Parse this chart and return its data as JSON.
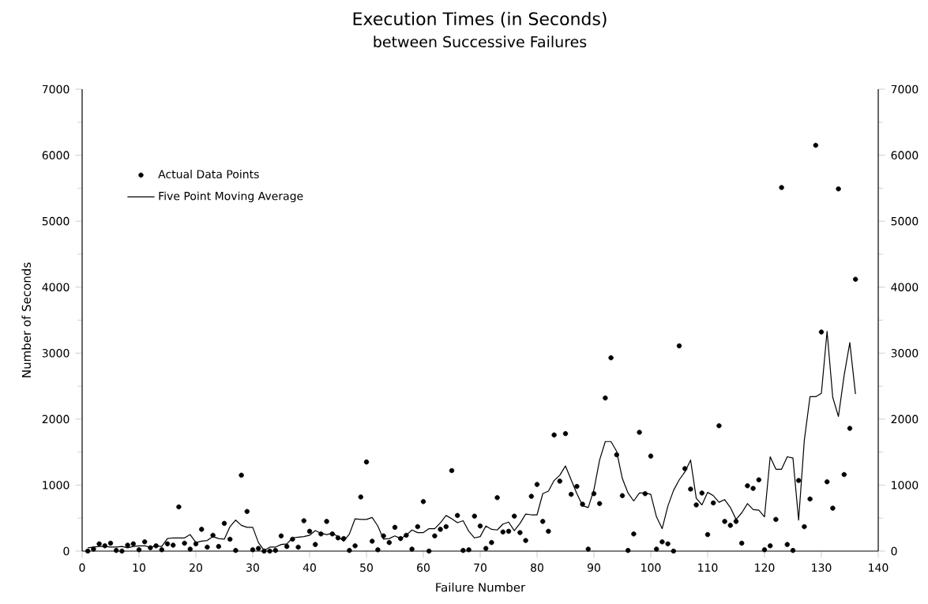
{
  "chart_data": {
    "type": "scatter",
    "title": "Execution Times (in Seconds)",
    "subtitle": "between Successive Failures",
    "xlabel": "Failure Number",
    "ylabel": "Number of Seconds",
    "x": [
      1,
      2,
      3,
      4,
      5,
      6,
      7,
      8,
      9,
      10,
      11,
      12,
      13,
      14,
      15,
      16,
      17,
      18,
      19,
      20,
      21,
      22,
      23,
      24,
      25,
      26,
      27,
      28,
      29,
      30,
      31,
      32,
      33,
      34,
      35,
      36,
      37,
      38,
      39,
      40,
      41,
      42,
      43,
      44,
      45,
      46,
      47,
      48,
      49,
      50,
      51,
      52,
      53,
      54,
      55,
      56,
      57,
      58,
      59,
      60,
      61,
      62,
      63,
      64,
      65,
      66,
      67,
      68,
      69,
      70,
      71,
      72,
      73,
      74,
      75,
      76,
      77,
      78,
      79,
      80,
      81,
      82,
      83,
      84,
      85,
      86,
      87,
      88,
      89,
      90,
      91,
      92,
      93,
      94,
      95,
      96,
      97,
      98,
      99,
      100,
      101,
      102,
      103,
      104,
      105,
      106,
      107,
      108,
      109,
      110,
      111,
      112,
      113,
      114,
      115,
      116,
      117,
      118,
      119,
      120,
      121,
      122,
      123,
      124,
      125,
      126,
      127,
      128,
      129,
      130,
      131,
      132,
      133,
      134,
      135,
      136
    ],
    "series": [
      {
        "name": "Actual Data Points",
        "marker": "circle",
        "color": "#000000",
        "values": [
          0,
          30,
          110,
          80,
          120,
          10,
          0,
          90,
          110,
          20,
          140,
          50,
          80,
          20,
          110,
          90,
          670,
          120,
          30,
          110,
          330,
          60,
          240,
          70,
          420,
          180,
          10,
          1150,
          600,
          20,
          40,
          0,
          0,
          10,
          230,
          70,
          180,
          60,
          460,
          300,
          100,
          260,
          450,
          260,
          200,
          190,
          10,
          80,
          820,
          1350,
          150,
          20,
          230,
          130,
          360,
          190,
          240,
          30,
          370,
          750,
          0,
          230,
          330,
          370,
          1220,
          540,
          10,
          20,
          530,
          380,
          40,
          130,
          810,
          290,
          300,
          530,
          280,
          160,
          830,
          1010,
          450,
          300,
          1760,
          1060,
          1780,
          860,
          980,
          710,
          30,
          870,
          720,
          2320,
          2930,
          1460,
          840,
          10,
          260,
          1800,
          870,
          1440,
          30,
          140,
          110,
          0,
          3110,
          1250,
          940,
          700,
          880,
          250,
          730,
          1900,
          450,
          390,
          450,
          120,
          990,
          950,
          1080,
          20,
          80,
          480,
          5510,
          100,
          10,
          1070,
          370,
          790,
          6150,
          3320,
          1050,
          650,
          5490,
          1160,
          1860,
          4120
        ]
      },
      {
        "name": "Five Point Moving Average",
        "type": "line",
        "marker": "none",
        "line_style": "solid",
        "color": "#000000",
        "values": [
          50,
          60,
          70,
          70,
          60,
          60,
          70,
          50,
          70,
          80,
          80,
          60,
          80,
          70,
          190,
          200,
          200,
          200,
          250,
          130,
          150,
          160,
          220,
          190,
          180,
          370,
          470,
          390,
          360,
          360,
          130,
          10,
          60,
          60,
          100,
          110,
          200,
          210,
          220,
          240,
          310,
          270,
          250,
          270,
          220,
          150,
          260,
          490,
          480,
          480,
          510,
          380,
          180,
          190,
          230,
          190,
          240,
          320,
          280,
          280,
          340,
          340,
          430,
          540,
          490,
          430,
          460,
          300,
          200,
          220,
          380,
          330,
          320,
          410,
          440,
          310,
          420,
          560,
          550,
          550,
          870,
          910,
          1070,
          1150,
          1290,
          1080,
          870,
          690,
          660,
          930,
          1380,
          1660,
          1660,
          1510,
          1100,
          880,
          760,
          880,
          880,
          860,
          520,
          340,
          680,
          920,
          1080,
          1200,
          1380,
          800,
          700,
          890,
          840,
          740,
          780,
          660,
          480,
          580,
          720,
          630,
          620,
          520,
          1430,
          1240,
          1240,
          1430,
          1410,
          470,
          1680,
          2340,
          2340,
          2390,
          3330,
          2330,
          2040,
          2660,
          3160,
          2380
        ]
      }
    ],
    "xlim": [
      0,
      140
    ],
    "xticks": [
      0,
      10,
      20,
      30,
      40,
      50,
      60,
      70,
      80,
      90,
      100,
      110,
      120,
      130,
      140
    ],
    "ylim": [
      0,
      7000
    ],
    "yticks": [
      0,
      1000,
      2000,
      3000,
      4000,
      5000,
      6000,
      7000
    ],
    "y2lim": [
      0,
      7000
    ],
    "y2ticks": [
      0,
      1000,
      2000,
      3000,
      4000,
      5000,
      6000,
      7000
    ],
    "legend": "top left"
  }
}
